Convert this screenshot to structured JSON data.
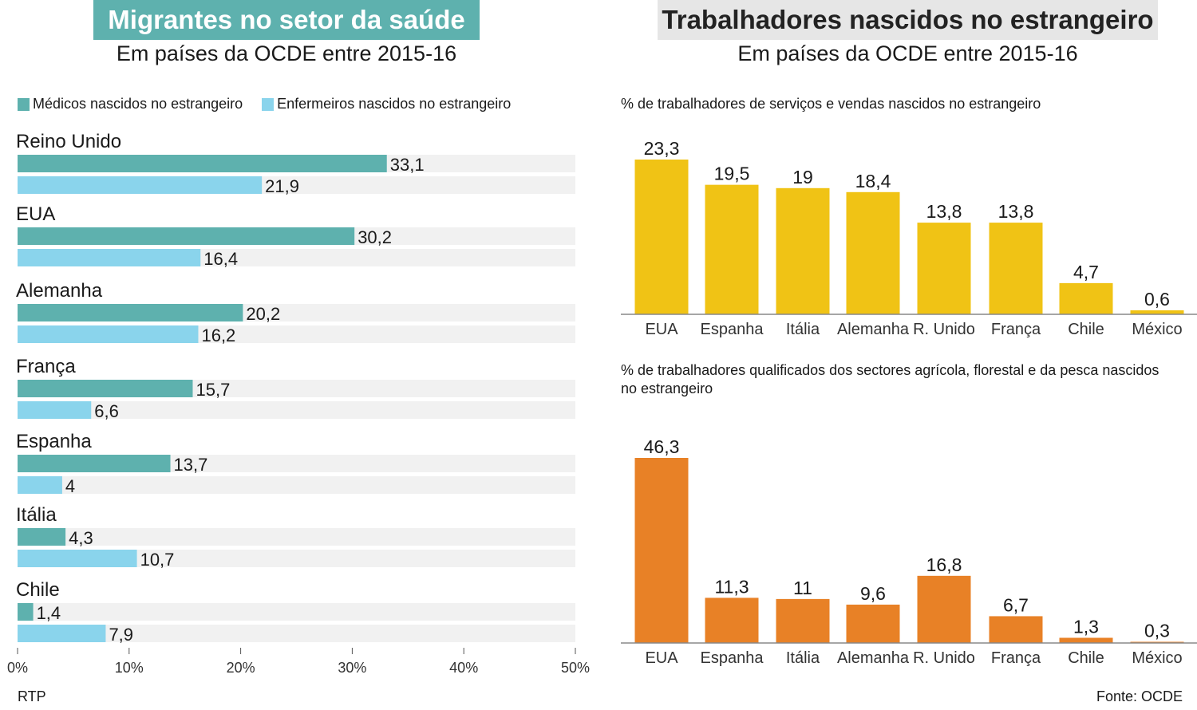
{
  "left": {
    "title": "Migrantes no setor da saúde",
    "subtitle": "Em países da OCDE entre 2015-16",
    "source": "RTP"
  },
  "right": {
    "title": "Trabalhadores nascidos no estrangeiro",
    "subtitle": "Em países da OCDE entre 2015-16",
    "source": "Fonte: OCDE"
  },
  "colors": {
    "medicos": "#5eb1ae",
    "enfermeiros": "#8ad4ec",
    "track": "#f1f1f1",
    "servicos": "#f0c315",
    "agricola": "#e88126",
    "left_title_bg": "#5eb1ae",
    "right_title_bg": "#e6e6e6"
  },
  "chart_data": [
    {
      "type": "bar",
      "orientation": "horizontal",
      "title": "Migrantes no setor da saúde",
      "subtitle": "Em países da OCDE entre 2015-16",
      "categories": [
        "Reino Unido",
        "EUA",
        "Alemanha",
        "França",
        "Espanha",
        "Itália",
        "Chile"
      ],
      "series": [
        {
          "name": "Médicos nascidos no estrangeiro",
          "values": [
            33.1,
            30.2,
            20.2,
            15.7,
            13.7,
            4.3,
            1.4
          ],
          "labels": [
            "33,1",
            "30,2",
            "20,2",
            "15,7",
            "13,7",
            "4,3",
            "1,4"
          ]
        },
        {
          "name": "Enfermeiros nascidos no estrangeiro",
          "values": [
            21.9,
            16.4,
            16.2,
            6.6,
            4,
            10.7,
            7.9
          ],
          "labels": [
            "21,9",
            "16,4",
            "16,2",
            "6,6",
            "4",
            "10,7",
            "7,9"
          ]
        }
      ],
      "xlim": [
        0,
        50
      ],
      "xticks": [
        "0%",
        "10%",
        "20%",
        "30%",
        "40%",
        "50%"
      ],
      "legend": "top-left",
      "grid": false
    },
    {
      "type": "bar",
      "orientation": "vertical",
      "title": "% de trabalhadores de serviços e vendas nascidos no estrangeiro",
      "categories": [
        "EUA",
        "Espanha",
        "Itália",
        "Alemanha",
        "R. Unido",
        "França",
        "Chile",
        "México"
      ],
      "values": [
        23.3,
        19.5,
        19,
        18.4,
        13.8,
        13.8,
        4.7,
        0.6
      ],
      "labels": [
        "23,3",
        "19,5",
        "19",
        "18,4",
        "13,8",
        "13,8",
        "4,7",
        "0,6"
      ],
      "ylim": [
        0,
        23.3
      ],
      "grid": false
    },
    {
      "type": "bar",
      "orientation": "vertical",
      "title": "% de trabalhadores qualificados dos sectores agrícola, florestal e da pesca nascidos no estrangeiro",
      "categories": [
        "EUA",
        "Espanha",
        "Itália",
        "Alemanha",
        "R. Unido",
        "França",
        "Chile",
        "México"
      ],
      "values": [
        46.3,
        11.3,
        11,
        9.6,
        16.8,
        6.7,
        1.3,
        0.3
      ],
      "labels": [
        "46,3",
        "11,3",
        "11",
        "9,6",
        "16,8",
        "6,7",
        "1,3",
        "0,3"
      ],
      "ylim": [
        0,
        46.3
      ],
      "grid": false
    }
  ]
}
